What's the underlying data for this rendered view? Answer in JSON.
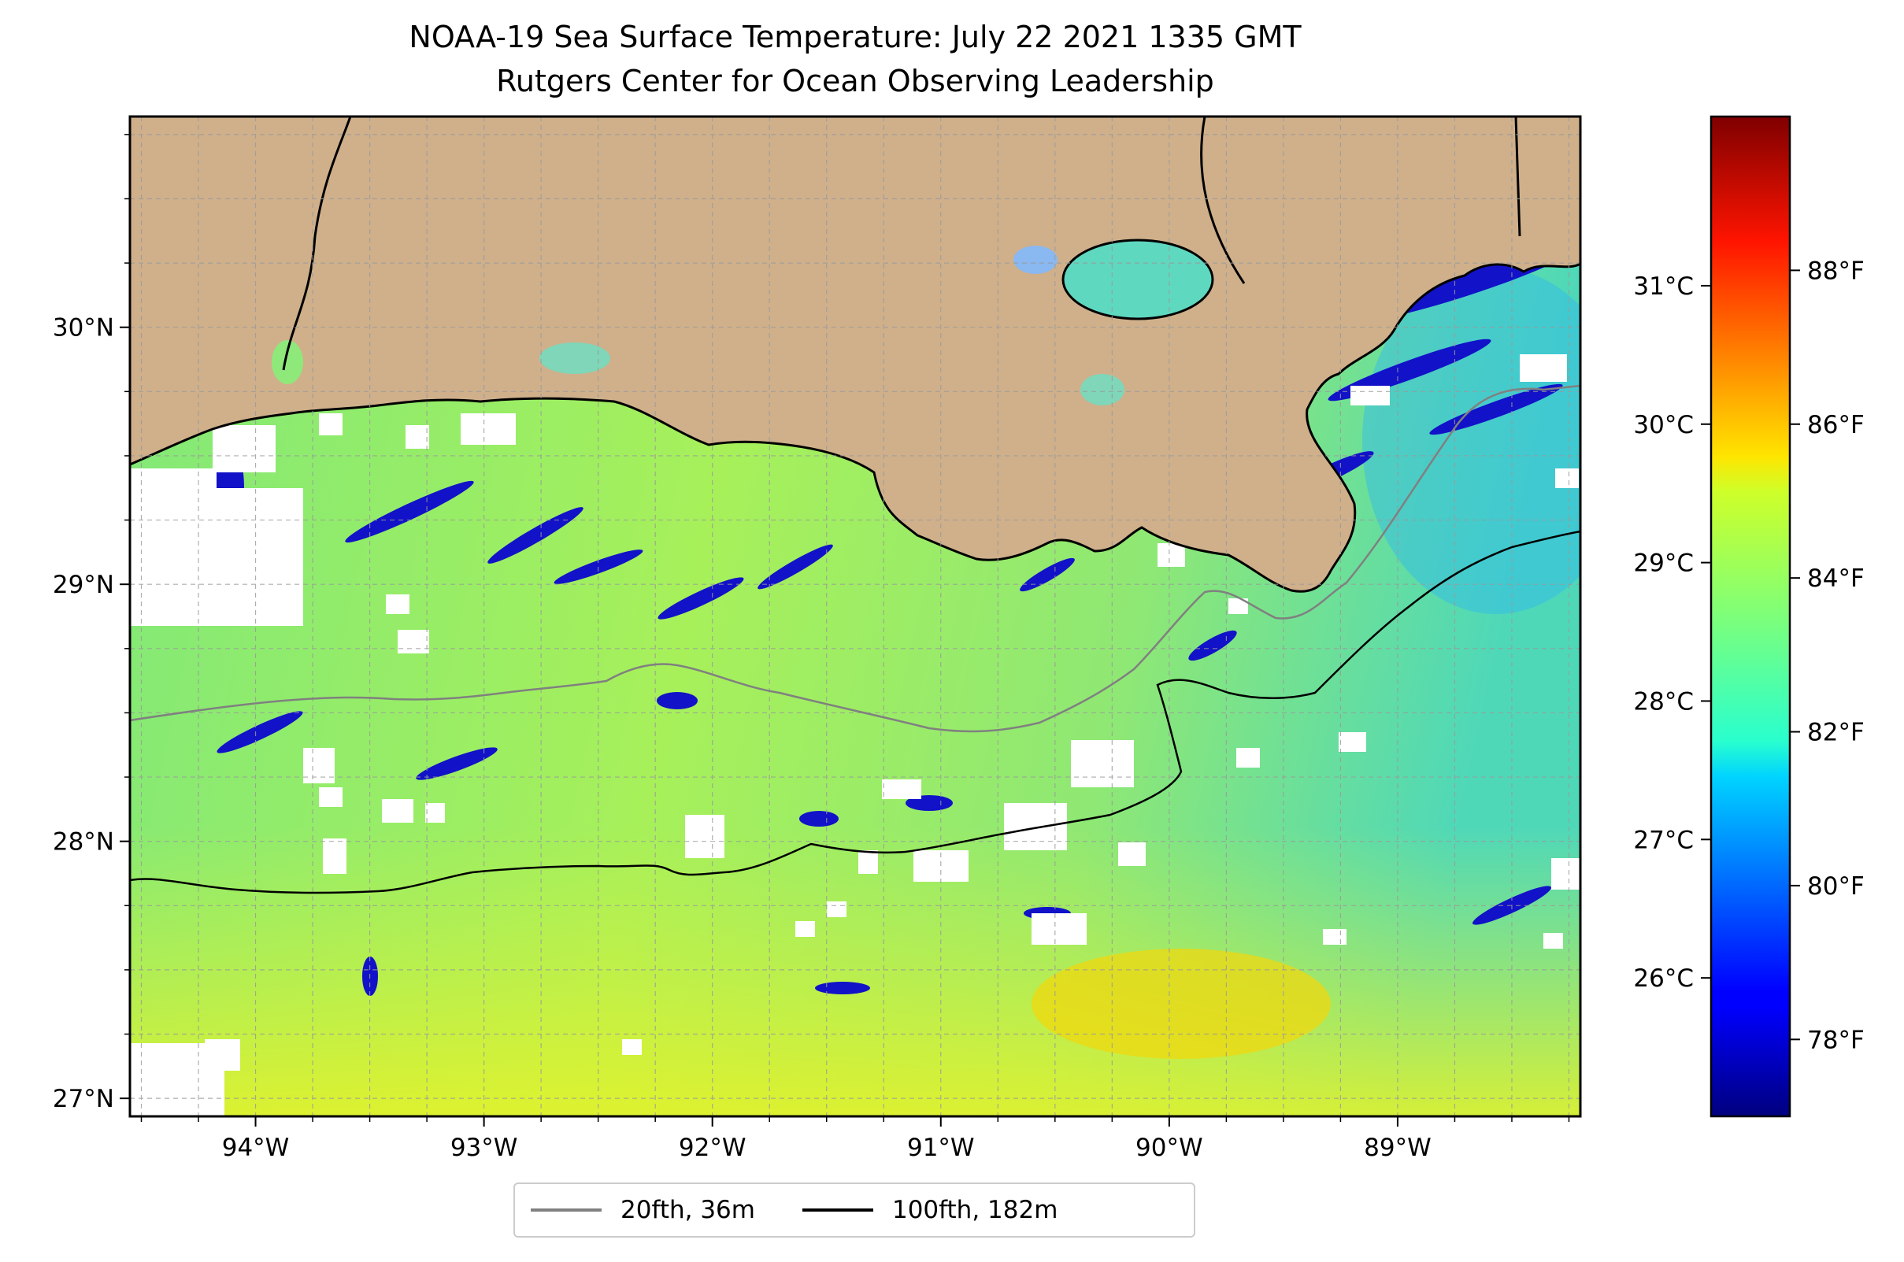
{
  "title": "NOAA-19 Sea Surface Temperature: July 22 2021 1335 GMT",
  "subtitle": "Rutgers Center for Ocean Observing Leadership",
  "map": {
    "lon_range": [
      -94.55,
      -88.2
    ],
    "lat_range": [
      26.93,
      30.82
    ],
    "land_color": "#cfb08b",
    "x_ticks": [
      {
        "lon": -94,
        "label": "94°W"
      },
      {
        "lon": -93,
        "label": "93°W"
      },
      {
        "lon": -92,
        "label": "92°W"
      },
      {
        "lon": -91,
        "label": "91°W"
      },
      {
        "lon": -90,
        "label": "90°W"
      },
      {
        "lon": -89,
        "label": "89°W"
      }
    ],
    "y_ticks": [
      {
        "lat": 27,
        "label": "27°N"
      },
      {
        "lat": 28,
        "label": "28°N"
      },
      {
        "lat": 29,
        "label": "29°N"
      },
      {
        "lat": 30,
        "label": "30°N"
      }
    ]
  },
  "colorbar": {
    "colormap": "jet",
    "range_f": [
      77,
      90
    ],
    "celsius_ticks": [
      {
        "value": 26,
        "label": "26°C"
      },
      {
        "value": 27,
        "label": "27°C"
      },
      {
        "value": 28,
        "label": "28°C"
      },
      {
        "value": 29,
        "label": "29°C"
      },
      {
        "value": 30,
        "label": "30°C"
      },
      {
        "value": 31,
        "label": "31°C"
      }
    ],
    "fahrenheit_ticks": [
      {
        "value": 78,
        "label": "78°F"
      },
      {
        "value": 80,
        "label": "80°F"
      },
      {
        "value": 82,
        "label": "82°F"
      },
      {
        "value": 84,
        "label": "84°F"
      },
      {
        "value": 86,
        "label": "86°F"
      },
      {
        "value": 88,
        "label": "88°F"
      }
    ]
  },
  "legend": [
    {
      "label": "20fth, 36m",
      "color": "#808080"
    },
    {
      "label": "100fth, 182m",
      "color": "#000000"
    }
  ]
}
